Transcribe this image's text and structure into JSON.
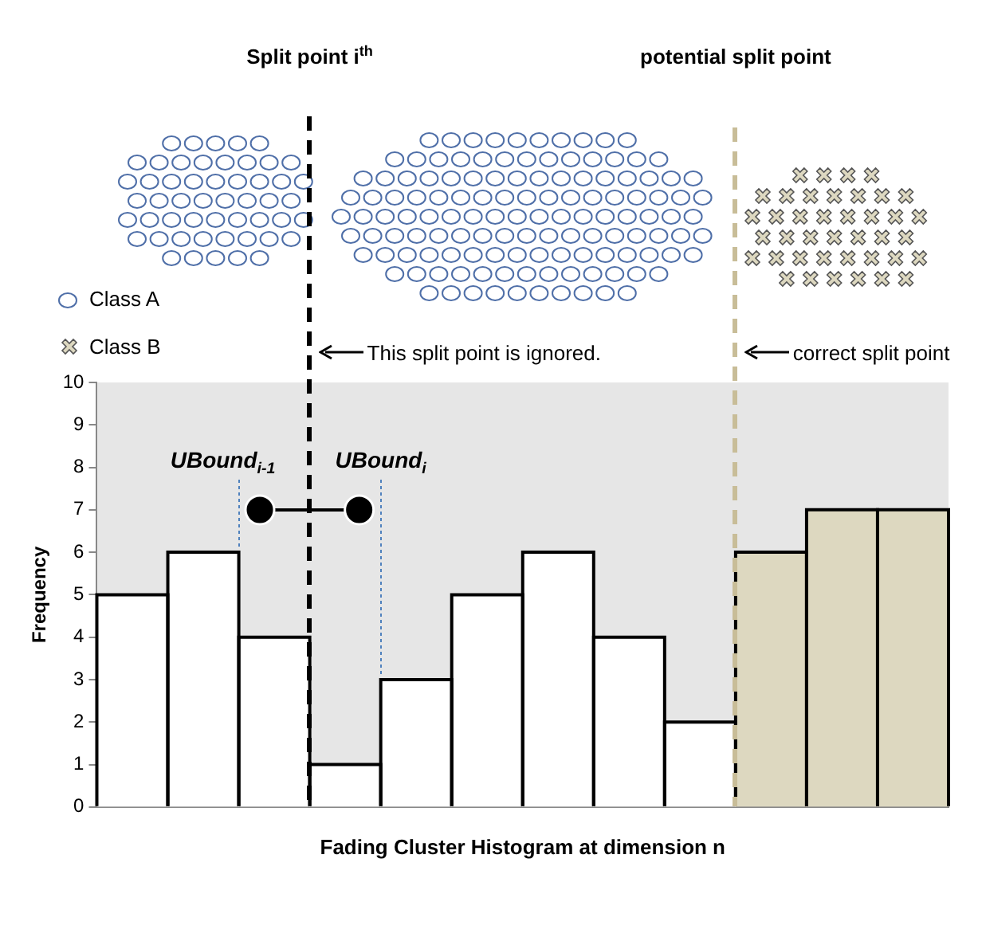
{
  "chart_data": {
    "type": "bar",
    "xlabel": "Fading Cluster Histogram at dimension n",
    "ylabel": "Frequency",
    "categories": [
      null,
      null,
      null,
      null,
      null,
      null,
      null,
      null,
      null,
      null,
      null,
      null
    ],
    "values": [
      5,
      6,
      4,
      1,
      3,
      5,
      6,
      4,
      2,
      6,
      7,
      7
    ],
    "colors": [
      "#ffffff",
      "#ffffff",
      "#ffffff",
      "#ffffff",
      "#ffffff",
      "#ffffff",
      "#ffffff",
      "#ffffff",
      "#ffffff",
      "#ddd8c0",
      "#ddd8c0",
      "#ddd8c0"
    ],
    "ylim": [
      0,
      10
    ],
    "yticks": [
      0,
      1,
      2,
      3,
      4,
      5,
      6,
      7,
      8,
      9,
      10
    ],
    "tick_labels": "y",
    "legend": false,
    "annotations": [
      "Split point i$^{th}$",
      "potential split point",
      "This split point is ignored.",
      "correct split point",
      "UBound$_{i-1}$",
      "UBound$_{i}$",
      "Class A",
      "Class B"
    ]
  }
}
